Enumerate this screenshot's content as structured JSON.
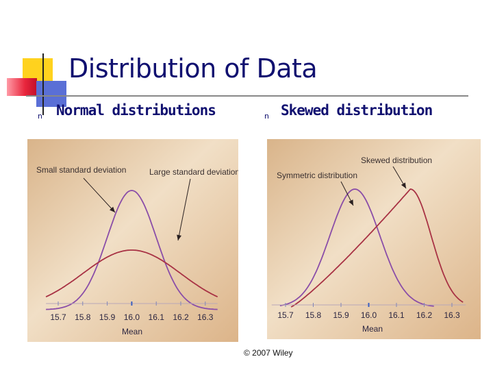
{
  "slide": {
    "title": "Distribution of Data",
    "bullet_left": "Normal distributions",
    "bullet_right": "Skewed distribution",
    "bullet_marker": "n",
    "credit": "© 2007 Wiley",
    "colors": {
      "title": "#101070",
      "curve_narrow": "#8a4da8",
      "curve_wide": "#a83244",
      "panel_bg": "#e4c7a1"
    }
  },
  "chart_data": [
    {
      "type": "line",
      "title": "",
      "xlabel": "Mean",
      "ylabel": "",
      "x_ticks": [
        "15.7",
        "15.8",
        "15.9",
        "16.0",
        "16.1",
        "16.2",
        "16.3"
      ],
      "xlim": [
        15.65,
        16.35
      ],
      "series": [
        {
          "name": "Small standard deviation",
          "color": "#8a4da8",
          "mean": 16.0,
          "sd": 0.1
        },
        {
          "name": "Large standard deviation",
          "color": "#a83244",
          "mean": 16.0,
          "sd": 0.2
        }
      ],
      "annotations": [
        "Small standard deviation",
        "Large standard deviation"
      ]
    },
    {
      "type": "line",
      "title": "",
      "xlabel": "Mean",
      "ylabel": "",
      "x_ticks": [
        "15.7",
        "15.8",
        "15.9",
        "16.0",
        "16.1",
        "16.2",
        "16.3"
      ],
      "xlim": [
        15.65,
        16.35
      ],
      "series": [
        {
          "name": "Symmetric distribution",
          "color": "#8a4da8",
          "mode": 15.95
        },
        {
          "name": "Skewed distribution",
          "color": "#a83244",
          "mode": 16.15
        }
      ],
      "annotations": [
        "Symmetric distribution",
        "Skewed distribution"
      ]
    }
  ]
}
